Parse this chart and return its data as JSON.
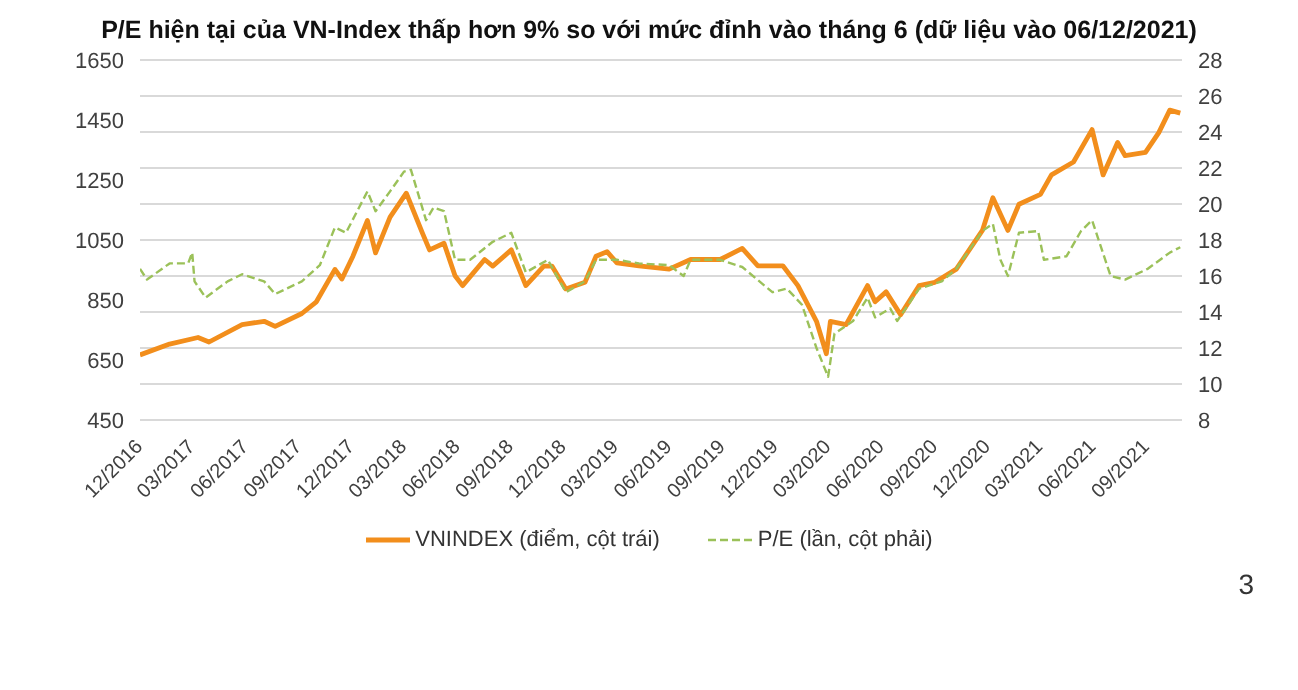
{
  "chart_data": {
    "type": "line",
    "title": "P/E hiện tại của VN-Index thấp hơn 9% so với mức đỉnh vào tháng 6 (dữ liệu vào 06/12/2021)",
    "series": [
      {
        "name": "VNINDEX (điểm, cột trái)",
        "color": "#f28e1c",
        "line_style": "solid",
        "x": [
          "2016-12-01",
          "2017-01-21",
          "2017-03-11",
          "2017-03-30",
          "2017-05-26",
          "2017-07-03",
          "2017-07-22",
          "2017-09-06",
          "2017-10-01",
          "2017-11-02",
          "2017-11-14",
          "2017-12-03",
          "2017-12-28",
          "2018-01-11",
          "2018-02-05",
          "2018-03-05",
          "2018-04-02",
          "2018-04-14",
          "2018-05-09",
          "2018-05-28",
          "2018-06-10",
          "2018-07-18",
          "2018-08-01",
          "2018-09-02",
          "2018-09-27",
          "2018-10-28",
          "2018-11-11",
          "2018-12-05",
          "2019-01-07",
          "2019-01-26",
          "2019-02-14",
          "2019-03-03",
          "2019-04-10",
          "2019-06-01",
          "2019-07-08",
          "2019-08-28",
          "2019-10-05",
          "2019-11-01",
          "2019-12-14",
          "2020-01-09",
          "2020-02-10",
          "2020-02-27",
          "2020-03-05",
          "2020-04-01",
          "2020-05-08",
          "2020-05-21",
          "2020-06-09",
          "2020-07-04",
          "2020-08-05",
          "2020-09-01",
          "2020-10-08",
          "2020-11-22",
          "2020-12-10",
          "2021-01-05",
          "2021-01-24",
          "2021-03-02",
          "2021-03-21",
          "2021-04-28",
          "2021-05-30",
          "2021-06-18",
          "2021-07-13",
          "2021-07-26",
          "2021-08-30",
          "2021-09-22",
          "2021-10-11",
          "2021-10-29"
        ],
        "values": [
          667,
          703,
          725,
          710,
          768,
          779,
          762,
          805,
          844,
          952,
          920,
          996,
          1115,
          1007,
          1126,
          1206,
          1072,
          1017,
          1039,
          931,
          898,
          985,
          963,
          1017,
          898,
          963,
          963,
          887,
          909,
          996,
          1011,
          974,
          964,
          953,
          985,
          985,
          1022,
          964,
          964,
          898,
          779,
          671,
          779,
          768,
          898,
          844,
          877,
          801,
          898,
          909,
          953,
          1082,
          1191,
          1082,
          1169,
          1202,
          1267,
          1310,
          1418,
          1267,
          1375,
          1331,
          1342,
          1408,
          1483,
          1473
        ]
      },
      {
        "name": "P/E (lần, cột phải)",
        "color": "#9bc159",
        "line_style": "dashed",
        "axis": "y2",
        "x": [
          "2016-12-01",
          "2016-12-13",
          "2017-01-21",
          "2017-02-22",
          "2017-03-01",
          "2017-03-05",
          "2017-03-24",
          "2017-05-01",
          "2017-05-26",
          "2017-07-03",
          "2017-07-22",
          "2017-09-06",
          "2017-10-07",
          "2017-11-02",
          "2017-11-21",
          "2017-12-28",
          "2018-01-11",
          "2018-02-05",
          "2018-03-01",
          "2018-03-13",
          "2018-04-08",
          "2018-04-21",
          "2018-05-09",
          "2018-05-28",
          "2018-06-23",
          "2018-08-01",
          "2018-09-02",
          "2018-09-27",
          "2018-11-04",
          "2018-12-05",
          "2019-01-07",
          "2019-01-26",
          "2019-03-03",
          "2019-04-10",
          "2019-06-01",
          "2019-06-26",
          "2019-07-08",
          "2019-08-28",
          "2019-10-05",
          "2019-11-26",
          "2019-12-21",
          "2020-01-16",
          "2020-02-10",
          "2020-03-01",
          "2020-03-12",
          "2020-04-13",
          "2020-05-08",
          "2020-05-21",
          "2020-06-16",
          "2020-06-28",
          "2020-08-05",
          "2020-09-13",
          "2020-10-08",
          "2020-11-22",
          "2020-12-10",
          "2020-12-23",
          "2021-01-05",
          "2021-01-24",
          "2021-02-26",
          "2021-03-08",
          "2021-04-16",
          "2021-05-11",
          "2021-05-30",
          "2021-07-01",
          "2021-07-26",
          "2021-09-03",
          "2021-10-11",
          "2021-10-29"
        ],
        "values": [
          16.4,
          15.8,
          16.7,
          16.7,
          17.3,
          15.7,
          14.8,
          15.7,
          16.1,
          15.7,
          15.0,
          15.7,
          16.6,
          18.7,
          18.4,
          20.7,
          19.6,
          20.7,
          21.8,
          21.9,
          19.1,
          19.8,
          19.6,
          16.9,
          16.9,
          17.9,
          18.4,
          16.2,
          16.9,
          15.1,
          15.7,
          16.9,
          16.9,
          16.7,
          16.6,
          16.0,
          16.9,
          16.9,
          16.5,
          15.1,
          15.3,
          14.4,
          12.0,
          10.4,
          12.8,
          13.5,
          14.8,
          13.7,
          14.2,
          13.5,
          15.3,
          15.7,
          16.4,
          18.5,
          18.9,
          16.9,
          16.0,
          18.4,
          18.5,
          16.9,
          17.1,
          18.5,
          19.1,
          16.0,
          15.8,
          16.4,
          17.3,
          17.6
        ]
      }
    ],
    "xlim": [
      "2016-12-01",
      "2021-11-01"
    ],
    "xticks": [
      {
        "value": "2016-12",
        "label": "12/2016"
      },
      {
        "value": "2017-03",
        "label": "03/2017"
      },
      {
        "value": "2017-06",
        "label": "06/2017"
      },
      {
        "value": "2017-09",
        "label": "09/2017"
      },
      {
        "value": "2017-12",
        "label": "12/2017"
      },
      {
        "value": "2018-03",
        "label": "03/2018"
      },
      {
        "value": "2018-06",
        "label": "06/2018"
      },
      {
        "value": "2018-09",
        "label": "09/2018"
      },
      {
        "value": "2018-12",
        "label": "12/2018"
      },
      {
        "value": "2019-03",
        "label": "03/2019"
      },
      {
        "value": "2019-06",
        "label": "06/2019"
      },
      {
        "value": "2019-09",
        "label": "09/2019"
      },
      {
        "value": "2019-12",
        "label": "12/2019"
      },
      {
        "value": "2020-03",
        "label": "03/2020"
      },
      {
        "value": "2020-06",
        "label": "06/2020"
      },
      {
        "value": "2020-09",
        "label": "09/2020"
      },
      {
        "value": "2020-12",
        "label": "12/2020"
      },
      {
        "value": "2021-03",
        "label": "03/2021"
      },
      {
        "value": "2021-06",
        "label": "06/2021"
      },
      {
        "value": "2021-09",
        "label": "09/2021"
      }
    ],
    "ylim": [
      450,
      1650
    ],
    "yticks": [
      450,
      650,
      850,
      1050,
      1250,
      1450,
      1650
    ],
    "y2lim": [
      8,
      28
    ],
    "y2ticks": [
      8,
      10,
      12,
      14,
      16,
      18,
      20,
      22,
      24,
      26,
      28
    ],
    "grid": "y",
    "legend": "bottom",
    "marker": "none",
    "annotations": [
      "3"
    ]
  }
}
